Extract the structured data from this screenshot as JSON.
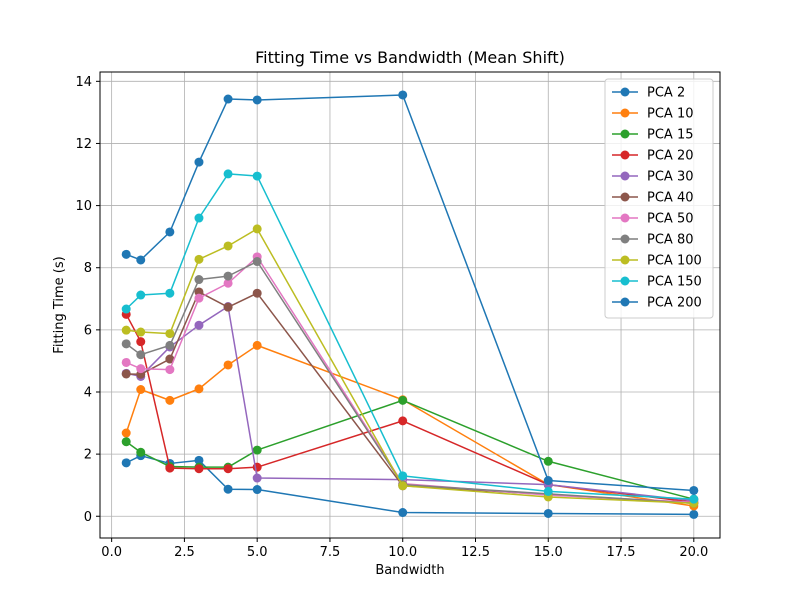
{
  "chart_data": {
    "type": "line",
    "title": "Fitting Time vs Bandwidth (Mean Shift)",
    "xlabel": "Bandwidth",
    "ylabel": "Fitting Time (s)",
    "xlim": [
      -0.4,
      20.9
    ],
    "ylim": [
      -0.7,
      14.3
    ],
    "xticks": [
      0.0,
      2.5,
      5.0,
      7.5,
      10.0,
      12.5,
      15.0,
      17.5,
      20.0
    ],
    "xtick_labels": [
      "0.0",
      "2.5",
      "5.0",
      "7.5",
      "10.0",
      "12.5",
      "15.0",
      "17.5",
      "20.0"
    ],
    "yticks": [
      0,
      2,
      4,
      6,
      8,
      10,
      12,
      14
    ],
    "ytick_labels": [
      "0",
      "2",
      "4",
      "6",
      "8",
      "10",
      "12",
      "14"
    ],
    "grid": true,
    "legend_position": "top-right",
    "x": [
      0.5,
      1,
      2,
      3,
      4,
      5,
      10,
      15,
      20
    ],
    "series": [
      {
        "name": "PCA 2",
        "color": "#1f77b4",
        "values": [
          1.72,
          1.95,
          1.7,
          1.8,
          0.87,
          0.86,
          0.12,
          0.09,
          0.06
        ]
      },
      {
        "name": "PCA 10",
        "color": "#ff7f0e",
        "values": [
          2.68,
          4.08,
          3.73,
          4.1,
          4.87,
          5.5,
          3.75,
          1.02,
          0.33
        ]
      },
      {
        "name": "PCA 15",
        "color": "#2ca02c",
        "values": [
          2.4,
          2.06,
          1.6,
          1.58,
          1.58,
          2.13,
          3.73,
          1.77,
          0.55
        ]
      },
      {
        "name": "PCA 20",
        "color": "#d62728",
        "values": [
          6.5,
          5.62,
          1.55,
          1.53,
          1.53,
          1.58,
          3.07,
          1.02,
          0.45
        ]
      },
      {
        "name": "PCA 30",
        "color": "#9467bd",
        "values": [
          4.6,
          4.5,
          5.45,
          6.15,
          6.75,
          1.23,
          1.18,
          1.02,
          0.5
        ]
      },
      {
        "name": "PCA 40",
        "color": "#8c564b",
        "values": [
          4.58,
          4.57,
          5.06,
          7.22,
          6.73,
          7.18,
          0.98,
          0.7,
          0.42
        ]
      },
      {
        "name": "PCA 50",
        "color": "#e377c2",
        "values": [
          4.95,
          4.75,
          4.72,
          7.02,
          7.5,
          8.35,
          1.05,
          0.68,
          0.45
        ]
      },
      {
        "name": "PCA 80",
        "color": "#7f7f7f",
        "values": [
          5.55,
          5.2,
          5.5,
          7.62,
          7.73,
          8.2,
          1.02,
          0.72,
          0.42
        ]
      },
      {
        "name": "PCA 100",
        "color": "#bcbd22",
        "values": [
          5.99,
          5.93,
          5.88,
          8.27,
          8.7,
          9.25,
          0.98,
          0.62,
          0.42
        ]
      },
      {
        "name": "PCA 150",
        "color": "#17becf",
        "values": [
          6.67,
          7.12,
          7.18,
          9.6,
          11.02,
          10.95,
          1.3,
          0.8,
          0.55
        ]
      },
      {
        "name": "PCA 200",
        "color": "#1f77b4",
        "values": [
          8.43,
          8.25,
          9.15,
          11.4,
          13.43,
          13.4,
          13.56,
          1.15,
          0.83
        ]
      }
    ]
  }
}
